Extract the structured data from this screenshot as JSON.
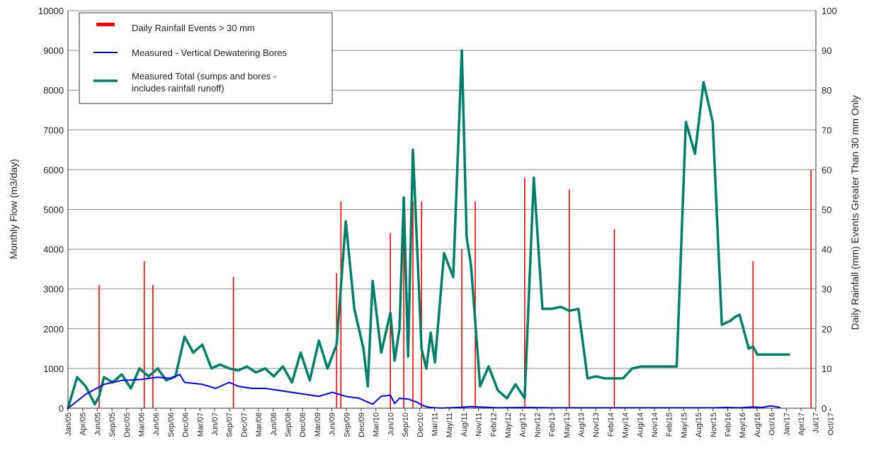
{
  "chart_data": {
    "type": "line",
    "title": "",
    "xlabel": "",
    "ylabel": "Monthly Flow (m3/day)",
    "y2label": "Daily Rainfall (mm) Events Greater Than 30 mm Only",
    "ylim": [
      0,
      10000
    ],
    "y2lim": [
      0,
      100
    ],
    "yticks": [
      "0",
      "1000",
      "2000",
      "3000",
      "4000",
      "5000",
      "6000",
      "7000",
      "8000",
      "9000",
      "10000"
    ],
    "y2ticks": [
      "0",
      "10",
      "20",
      "30",
      "40",
      "50",
      "60",
      "70",
      "80",
      "90",
      "100"
    ],
    "grid": true,
    "legend_position": "top-left",
    "colors": {
      "rainfall": "#ff0000",
      "bores": "#0000ff",
      "total": "#008066"
    },
    "x_labels": [
      "Jan/05",
      "Apr/05",
      "Jun/05",
      "Sep/05",
      "Dec/05",
      "Mar/06",
      "Jun/06",
      "Sep/06",
      "Dec/06",
      "Mar/07",
      "Jun/07",
      "Sep/07",
      "Dec/07",
      "Mar/08",
      "Jun/08",
      "Sep/08",
      "Dec/08",
      "Mar/09",
      "Jun/09",
      "Sep/09",
      "Dec/09",
      "Mar/10",
      "Jun/10",
      "Sep/10",
      "Dec/10",
      "Mar/11",
      "May/11",
      "Aug/11",
      "Nov/11",
      "Feb/12",
      "May/12",
      "Aug/12",
      "Nov/12",
      "Feb/13",
      "May/13",
      "Aug/13",
      "Nov/13",
      "Feb/14",
      "May/14",
      "Aug/14",
      "Nov/14",
      "Feb/15",
      "May/15",
      "Aug/15",
      "Nov/15",
      "Feb/16",
      "May/16",
      "Aug/16",
      "Oct/16",
      "Jan/17",
      "Apr/17",
      "Jul/17",
      "Oct/17"
    ],
    "series": [
      {
        "name": "Daily Rainfall Events > 30 mm",
        "axis": "right",
        "kind": "bar",
        "x": [
          2005.58,
          2006.42,
          2006.58,
          2008.08,
          2010.0,
          2010.08,
          2011.0,
          2011.25,
          2011.42,
          2011.58,
          2012.33,
          2012.58,
          2013.5,
          2014.33,
          2015.17,
          2017.75,
          2018.83
        ],
        "values": [
          31,
          37,
          31,
          33,
          34,
          52,
          44,
          47,
          52,
          52,
          40,
          52,
          58,
          55,
          45,
          37,
          60
        ]
      },
      {
        "name": "Measured - Vertical Dewatering Bores",
        "axis": "left",
        "kind": "line",
        "x": [
          2005.0,
          2005.33,
          2005.67,
          2006.0,
          2006.33,
          2006.67,
          2006.92,
          2007.0,
          2007.08,
          2007.17,
          2007.5,
          2007.75,
          2008.0,
          2008.17,
          2008.42,
          2008.67,
          2008.92,
          2009.17,
          2009.42,
          2009.67,
          2009.92,
          2010.17,
          2010.42,
          2010.67,
          2010.83,
          2011.0,
          2011.08,
          2011.17,
          2011.33,
          2011.5,
          2011.58,
          2011.67,
          2011.75,
          2011.83,
          2011.92,
          2012.0,
          2012.08,
          2012.25,
          2012.5,
          2013.0,
          2013.5,
          2014.0,
          2014.5,
          2015.0,
          2015.5,
          2016.0,
          2016.5,
          2017.0,
          2017.25,
          2017.5,
          2017.75,
          2017.92,
          2018.08,
          2018.17,
          2018.25
        ],
        "values": [
          0,
          350,
          600,
          700,
          720,
          780,
          750,
          800,
          850,
          650,
          600,
          500,
          650,
          550,
          500,
          500,
          450,
          400,
          350,
          300,
          400,
          300,
          250,
          100,
          300,
          330,
          120,
          250,
          230,
          150,
          80,
          40,
          20,
          10,
          5,
          5,
          10,
          20,
          40,
          10,
          20,
          10,
          10,
          10,
          10,
          10,
          10,
          10,
          20,
          10,
          30,
          20,
          60,
          40,
          20
        ]
      },
      {
        "name": "Measured Total (sumps and bores - includes rainfall runoff)",
        "axis": "left",
        "kind": "line",
        "x": [
          2005.0,
          2005.17,
          2005.33,
          2005.5,
          2005.58,
          2005.67,
          2005.83,
          2006.0,
          2006.17,
          2006.33,
          2006.5,
          2006.67,
          2006.83,
          2007.0,
          2007.17,
          2007.33,
          2007.5,
          2007.67,
          2007.83,
          2008.0,
          2008.17,
          2008.33,
          2008.5,
          2008.67,
          2008.83,
          2009.0,
          2009.17,
          2009.33,
          2009.5,
          2009.67,
          2009.83,
          2010.0,
          2010.17,
          2010.33,
          2010.5,
          2010.58,
          2010.67,
          2010.83,
          2011.0,
          2011.08,
          2011.17,
          2011.25,
          2011.33,
          2011.42,
          2011.5,
          2011.58,
          2011.67,
          2011.75,
          2011.83,
          2012.0,
          2012.17,
          2012.33,
          2012.42,
          2012.5,
          2012.67,
          2012.83,
          2013.0,
          2013.17,
          2013.33,
          2013.5,
          2013.67,
          2013.83,
          2014.0,
          2014.17,
          2014.33,
          2014.5,
          2014.67,
          2014.83,
          2015.0,
          2015.17,
          2015.33,
          2015.5,
          2015.67,
          2015.83,
          2016.0,
          2016.17,
          2016.33,
          2016.5,
          2016.67,
          2016.83,
          2017.0,
          2017.17,
          2017.33,
          2017.42,
          2017.5,
          2017.67,
          2017.75,
          2017.83,
          2017.92,
          2018.0,
          2018.08,
          2018.17,
          2018.25,
          2018.33,
          2018.42
        ],
        "values": [
          0,
          780,
          550,
          100,
          300,
          780,
          650,
          850,
          500,
          1000,
          800,
          1000,
          700,
          800,
          1800,
          1400,
          1600,
          1000,
          1100,
          1000,
          950,
          1050,
          900,
          1000,
          800,
          1050,
          650,
          1400,
          700,
          1700,
          1000,
          1600,
          4700,
          2500,
          1500,
          550,
          3200,
          1400,
          2400,
          1200,
          2000,
          5300,
          1300,
          6500,
          4000,
          1500,
          1000,
          1900,
          1150,
          3900,
          3300,
          9000,
          4300,
          3600,
          550,
          1050,
          450,
          250,
          600,
          250,
          5800,
          2500,
          2500,
          2550,
          2450,
          2500,
          750,
          800,
          750,
          750,
          750,
          1000,
          1050,
          1050,
          1050,
          1050,
          1050,
          7200,
          6400,
          8200,
          7200,
          2100,
          2200,
          2300,
          2350,
          1500,
          1550,
          1350,
          1350,
          1350,
          1350,
          1350,
          1350,
          1350,
          1350
        ]
      }
    ]
  },
  "legend": {
    "items": [
      {
        "label": "Daily Rainfall Events > 30 mm"
      },
      {
        "label": "Measured - Vertical Dewatering Bores"
      },
      {
        "label_line1": "Measured Total (sumps and bores -",
        "label_line2": "includes rainfall runoff)"
      }
    ]
  }
}
